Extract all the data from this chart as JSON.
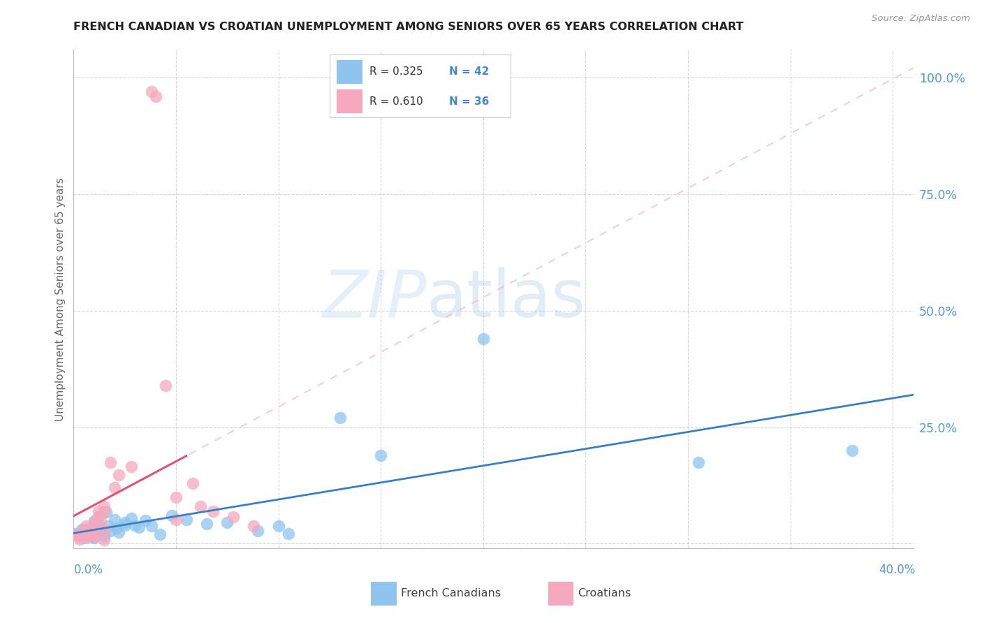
{
  "title": "FRENCH CANADIAN VS CROATIAN UNEMPLOYMENT AMONG SENIORS OVER 65 YEARS CORRELATION CHART",
  "source": "Source: ZipAtlas.com",
  "ylabel": "Unemployment Among Seniors over 65 years",
  "xlim": [
    0.0,
    0.41
  ],
  "ylim": [
    -0.01,
    1.06
  ],
  "ytick_vals": [
    0.0,
    0.25,
    0.5,
    0.75,
    1.0
  ],
  "ytick_labels": [
    "",
    "25.0%",
    "50.0%",
    "75.0%",
    "100.0%"
  ],
  "xtick_vals": [
    0.0,
    0.05,
    0.1,
    0.15,
    0.2,
    0.25,
    0.3,
    0.35,
    0.4
  ],
  "watermark": "ZIPatlas",
  "blue_scatter": "#8ec4ee",
  "pink_scatter": "#f5a8be",
  "blue_line": "#3a7fc1",
  "pink_solid_line": "#e0527a",
  "pink_dash_line": "#f0b8cc",
  "title_color": "#222222",
  "axis_tick_color": "#5599cc",
  "ylabel_color": "#666666",
  "grid_color": "#cccccc",
  "source_color": "#999999",
  "legend_r_color": "#333333",
  "legend_n_color": "#4488cc",
  "french_canadians": [
    [
      0.001,
      0.022
    ],
    [
      0.003,
      0.018
    ],
    [
      0.004,
      0.03
    ],
    [
      0.005,
      0.012
    ],
    [
      0.006,
      0.025
    ],
    [
      0.007,
      0.02
    ],
    [
      0.008,
      0.022
    ],
    [
      0.009,
      0.015
    ],
    [
      0.01,
      0.048
    ],
    [
      0.01,
      0.038
    ],
    [
      0.01,
      0.02
    ],
    [
      0.01,
      0.012
    ],
    [
      0.012,
      0.058
    ],
    [
      0.012,
      0.04
    ],
    [
      0.013,
      0.028
    ],
    [
      0.014,
      0.018
    ],
    [
      0.015,
      0.015
    ],
    [
      0.016,
      0.068
    ],
    [
      0.017,
      0.038
    ],
    [
      0.018,
      0.028
    ],
    [
      0.02,
      0.052
    ],
    [
      0.021,
      0.033
    ],
    [
      0.022,
      0.024
    ],
    [
      0.025,
      0.045
    ],
    [
      0.025,
      0.04
    ],
    [
      0.028,
      0.055
    ],
    [
      0.03,
      0.04
    ],
    [
      0.032,
      0.035
    ],
    [
      0.035,
      0.05
    ],
    [
      0.038,
      0.038
    ],
    [
      0.042,
      0.02
    ],
    [
      0.048,
      0.06
    ],
    [
      0.055,
      0.052
    ],
    [
      0.065,
      0.042
    ],
    [
      0.075,
      0.045
    ],
    [
      0.09,
      0.028
    ],
    [
      0.1,
      0.038
    ],
    [
      0.105,
      0.022
    ],
    [
      0.13,
      0.27
    ],
    [
      0.15,
      0.19
    ],
    [
      0.2,
      0.44
    ],
    [
      0.305,
      0.175
    ],
    [
      0.38,
      0.2
    ]
  ],
  "croatians": [
    [
      0.001,
      0.02
    ],
    [
      0.002,
      0.015
    ],
    [
      0.003,
      0.01
    ],
    [
      0.004,
      0.025
    ],
    [
      0.005,
      0.03
    ],
    [
      0.005,
      0.018
    ],
    [
      0.006,
      0.038
    ],
    [
      0.007,
      0.032
    ],
    [
      0.007,
      0.014
    ],
    [
      0.008,
      0.03
    ],
    [
      0.009,
      0.024
    ],
    [
      0.01,
      0.048
    ],
    [
      0.01,
      0.038
    ],
    [
      0.01,
      0.02
    ],
    [
      0.01,
      0.015
    ],
    [
      0.012,
      0.07
    ],
    [
      0.012,
      0.058
    ],
    [
      0.013,
      0.05
    ],
    [
      0.015,
      0.08
    ],
    [
      0.015,
      0.068
    ],
    [
      0.015,
      0.03
    ],
    [
      0.015,
      0.008
    ],
    [
      0.018,
      0.175
    ],
    [
      0.02,
      0.12
    ],
    [
      0.022,
      0.148
    ],
    [
      0.028,
      0.165
    ],
    [
      0.038,
      0.97
    ],
    [
      0.04,
      0.96
    ],
    [
      0.045,
      0.34
    ],
    [
      0.05,
      0.1
    ],
    [
      0.05,
      0.052
    ],
    [
      0.058,
      0.13
    ],
    [
      0.062,
      0.08
    ],
    [
      0.068,
      0.07
    ],
    [
      0.078,
      0.058
    ],
    [
      0.088,
      0.038
    ]
  ]
}
